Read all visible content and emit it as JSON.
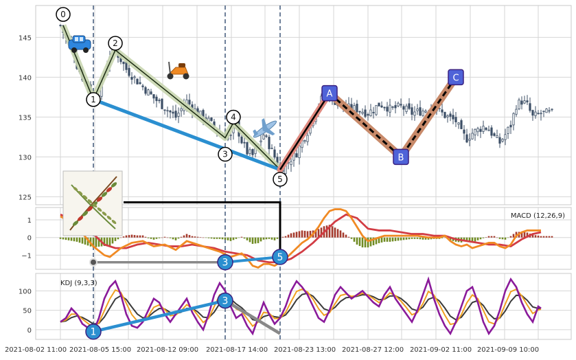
{
  "chart_data": {
    "type": "candlestick_with_indicators",
    "x_ticks": [
      "2021-08-02 11:00",
      "2021-08-05 15:00",
      "2021-08-12 09:00",
      "2021-08-17 14:00",
      "2021-08-23 13:00",
      "2021-08-27 12:00",
      "2021-09-02 11:00",
      "2021-09-09 10:00"
    ],
    "n_bars": 180,
    "price_panel": {
      "y_ticks": [
        125,
        130,
        135,
        140,
        145
      ],
      "ylim": [
        124,
        149
      ],
      "close_path": [
        [
          0,
          146.5
        ],
        [
          2,
          144.8
        ],
        [
          4,
          144.5
        ],
        [
          6,
          141.5
        ],
        [
          8,
          140.0
        ],
        [
          10,
          139.0
        ],
        [
          12,
          137.2
        ],
        [
          14,
          138.2
        ],
        [
          16,
          140.5
        ],
        [
          18,
          142.8
        ],
        [
          20,
          143.4
        ],
        [
          24,
          141.0
        ],
        [
          28,
          139.5
        ],
        [
          34,
          137.4
        ],
        [
          38,
          136.2
        ],
        [
          42,
          135.0
        ],
        [
          46,
          137.0
        ],
        [
          50,
          135.5
        ],
        [
          54,
          134.5
        ],
        [
          58,
          133.0
        ],
        [
          62,
          132.5
        ],
        [
          64,
          134.0
        ],
        [
          66,
          132.0
        ],
        [
          68,
          130.6
        ],
        [
          70,
          130.2
        ],
        [
          72,
          131.5
        ],
        [
          74,
          132.8
        ],
        [
          76,
          131.5
        ],
        [
          78,
          130.0
        ],
        [
          80,
          128.4
        ],
        [
          82,
          129.0
        ],
        [
          84,
          129.8
        ],
        [
          86,
          130.5
        ],
        [
          88,
          132.0
        ],
        [
          90,
          133.2
        ],
        [
          92,
          135.0
        ],
        [
          94,
          136.5
        ],
        [
          96,
          137.9
        ],
        [
          98,
          137.5
        ],
        [
          100,
          137.0
        ],
        [
          104,
          136.2
        ],
        [
          108,
          136.0
        ],
        [
          112,
          135.5
        ],
        [
          114,
          136.0
        ],
        [
          116,
          136.6
        ],
        [
          118,
          136.5
        ],
        [
          120,
          136.0
        ],
        [
          124,
          136.3
        ],
        [
          128,
          135.5
        ],
        [
          132,
          135.8
        ],
        [
          136,
          136.3
        ],
        [
          140,
          135.2
        ],
        [
          144,
          134.5
        ],
        [
          146,
          133.0
        ],
        [
          148,
          132.3
        ],
        [
          150,
          133.0
        ],
        [
          154,
          133.8
        ],
        [
          156,
          133.5
        ],
        [
          158,
          132.5
        ],
        [
          160,
          131.8
        ],
        [
          162,
          132.8
        ],
        [
          164,
          134.0
        ],
        [
          166,
          136.5
        ],
        [
          168,
          137.0
        ],
        [
          170,
          136.5
        ],
        [
          172,
          135.0
        ],
        [
          175,
          135.5
        ]
      ]
    },
    "zigzag_waves": [
      {
        "label": "0",
        "x": 1,
        "y": 146.5
      },
      {
        "label": "1",
        "x": 12,
        "y": 137.2
      },
      {
        "label": "2",
        "x": 20,
        "y": 143.4
      },
      {
        "label": "3",
        "x": 60,
        "y": 132.4
      },
      {
        "label": "4",
        "x": 63,
        "y": 134.3
      },
      {
        "label": "5",
        "x": 80,
        "y": 128.4
      }
    ],
    "abc_pattern": [
      {
        "label": "A",
        "x": 98,
        "y": 138.0
      },
      {
        "label": "B",
        "x": 124,
        "y": 130.0
      },
      {
        "label": "C",
        "x": 144,
        "y": 140.0
      }
    ],
    "price_trendline": {
      "from": {
        "x": 12,
        "y": 137.2
      },
      "to": {
        "x": 80,
        "y": 128.4
      }
    },
    "vertical_markers_x": [
      12,
      60,
      80
    ],
    "macd_panel": {
      "label": "MACD (12,26,9)",
      "y_ticks": [
        -1,
        0,
        1
      ],
      "ylim": [
        -1.8,
        1.7
      ],
      "macd": [
        [
          0,
          1.2
        ],
        [
          6,
          0.6
        ],
        [
          12,
          -0.5
        ],
        [
          16,
          -1.0
        ],
        [
          18,
          -1.1
        ],
        [
          22,
          -0.6
        ],
        [
          26,
          -0.3
        ],
        [
          30,
          -0.2
        ],
        [
          34,
          -0.5
        ],
        [
          38,
          -0.4
        ],
        [
          42,
          -0.7
        ],
        [
          46,
          -0.2
        ],
        [
          50,
          -0.4
        ],
        [
          54,
          -0.6
        ],
        [
          58,
          -0.8
        ],
        [
          62,
          -1.1
        ],
        [
          64,
          -1.0
        ],
        [
          66,
          -0.9
        ],
        [
          68,
          -1.2
        ],
        [
          70,
          -1.6
        ],
        [
          72,
          -1.7
        ],
        [
          74,
          -1.5
        ],
        [
          76,
          -1.5
        ],
        [
          78,
          -1.6
        ],
        [
          80,
          -1.4
        ],
        [
          82,
          -1.2
        ],
        [
          84,
          -0.9
        ],
        [
          86,
          -0.6
        ],
        [
          88,
          -0.3
        ],
        [
          90,
          -0.1
        ],
        [
          92,
          0.2
        ],
        [
          94,
          0.6
        ],
        [
          96,
          1.1
        ],
        [
          98,
          1.5
        ],
        [
          100,
          1.6
        ],
        [
          102,
          1.6
        ],
        [
          104,
          1.5
        ],
        [
          106,
          1.1
        ],
        [
          108,
          0.6
        ],
        [
          110,
          0.1
        ],
        [
          112,
          -0.2
        ],
        [
          114,
          -0.1
        ],
        [
          116,
          0.0
        ],
        [
          118,
          0.1
        ],
        [
          122,
          0.1
        ],
        [
          126,
          0.1
        ],
        [
          130,
          0.1
        ],
        [
          134,
          0.0
        ],
        [
          138,
          0.0
        ],
        [
          140,
          0.1
        ],
        [
          142,
          -0.2
        ],
        [
          144,
          -0.4
        ],
        [
          146,
          -0.5
        ],
        [
          148,
          -0.4
        ],
        [
          150,
          -0.6
        ],
        [
          152,
          -0.5
        ],
        [
          154,
          -0.4
        ],
        [
          156,
          -0.3
        ],
        [
          158,
          -0.3
        ],
        [
          160,
          -0.5
        ],
        [
          162,
          -0.6
        ],
        [
          164,
          -0.4
        ],
        [
          166,
          0.1
        ],
        [
          168,
          0.3
        ],
        [
          170,
          0.4
        ],
        [
          172,
          0.4
        ],
        [
          175,
          0.4
        ]
      ],
      "signal": [
        [
          0,
          1.3
        ],
        [
          6,
          0.9
        ],
        [
          12,
          0.2
        ],
        [
          16,
          -0.4
        ],
        [
          20,
          -0.6
        ],
        [
          24,
          -0.6
        ],
        [
          28,
          -0.4
        ],
        [
          32,
          -0.3
        ],
        [
          36,
          -0.4
        ],
        [
          40,
          -0.5
        ],
        [
          44,
          -0.5
        ],
        [
          48,
          -0.4
        ],
        [
          52,
          -0.5
        ],
        [
          56,
          -0.6
        ],
        [
          60,
          -0.8
        ],
        [
          64,
          -0.9
        ],
        [
          68,
          -1.0
        ],
        [
          72,
          -1.3
        ],
        [
          76,
          -1.4
        ],
        [
          80,
          -1.4
        ],
        [
          84,
          -1.2
        ],
        [
          88,
          -0.8
        ],
        [
          92,
          -0.3
        ],
        [
          96,
          0.3
        ],
        [
          100,
          0.9
        ],
        [
          104,
          1.3
        ],
        [
          108,
          1.1
        ],
        [
          112,
          0.5
        ],
        [
          116,
          0.4
        ],
        [
          120,
          0.4
        ],
        [
          124,
          0.3
        ],
        [
          128,
          0.2
        ],
        [
          132,
          0.2
        ],
        [
          136,
          0.1
        ],
        [
          140,
          0.1
        ],
        [
          144,
          -0.1
        ],
        [
          148,
          -0.2
        ],
        [
          152,
          -0.3
        ],
        [
          156,
          -0.4
        ],
        [
          160,
          -0.4
        ],
        [
          164,
          -0.5
        ],
        [
          168,
          -0.1
        ],
        [
          172,
          0.2
        ],
        [
          175,
          0.3
        ]
      ]
    },
    "kdj_panel": {
      "label": "KDJ (9,3,3)",
      "y_ticks": [
        0,
        50,
        100
      ],
      "ylim": [
        -25,
        145
      ],
      "j_series": [
        [
          0,
          20
        ],
        [
          2,
          30
        ],
        [
          4,
          55
        ],
        [
          6,
          40
        ],
        [
          8,
          15
        ],
        [
          10,
          5
        ],
        [
          12,
          -5
        ],
        [
          14,
          30
        ],
        [
          16,
          80
        ],
        [
          18,
          110
        ],
        [
          20,
          125
        ],
        [
          22,
          90
        ],
        [
          24,
          40
        ],
        [
          26,
          10
        ],
        [
          28,
          5
        ],
        [
          30,
          20
        ],
        [
          32,
          50
        ],
        [
          34,
          80
        ],
        [
          36,
          70
        ],
        [
          38,
          40
        ],
        [
          40,
          20
        ],
        [
          42,
          40
        ],
        [
          44,
          60
        ],
        [
          46,
          80
        ],
        [
          48,
          45
        ],
        [
          50,
          20
        ],
        [
          52,
          0
        ],
        [
          54,
          40
        ],
        [
          56,
          90
        ],
        [
          58,
          120
        ],
        [
          60,
          100
        ],
        [
          62,
          60
        ],
        [
          64,
          30
        ],
        [
          66,
          40
        ],
        [
          68,
          10
        ],
        [
          70,
          -10
        ],
        [
          72,
          30
        ],
        [
          74,
          70
        ],
        [
          76,
          40
        ],
        [
          78,
          15
        ],
        [
          80,
          30
        ],
        [
          82,
          60
        ],
        [
          84,
          100
        ],
        [
          86,
          125
        ],
        [
          88,
          110
        ],
        [
          90,
          90
        ],
        [
          92,
          60
        ],
        [
          94,
          30
        ],
        [
          96,
          20
        ],
        [
          98,
          50
        ],
        [
          100,
          90
        ],
        [
          102,
          110
        ],
        [
          104,
          95
        ],
        [
          106,
          80
        ],
        [
          108,
          90
        ],
        [
          110,
          100
        ],
        [
          112,
          85
        ],
        [
          114,
          70
        ],
        [
          116,
          60
        ],
        [
          118,
          90
        ],
        [
          120,
          110
        ],
        [
          122,
          80
        ],
        [
          124,
          60
        ],
        [
          126,
          40
        ],
        [
          128,
          20
        ],
        [
          130,
          50
        ],
        [
          132,
          90
        ],
        [
          134,
          130
        ],
        [
          136,
          80
        ],
        [
          138,
          40
        ],
        [
          140,
          10
        ],
        [
          142,
          -10
        ],
        [
          144,
          20
        ],
        [
          146,
          60
        ],
        [
          148,
          100
        ],
        [
          150,
          110
        ],
        [
          152,
          70
        ],
        [
          154,
          20
        ],
        [
          156,
          -10
        ],
        [
          158,
          10
        ],
        [
          160,
          50
        ],
        [
          162,
          100
        ],
        [
          164,
          130
        ],
        [
          166,
          110
        ],
        [
          168,
          70
        ],
        [
          170,
          40
        ],
        [
          172,
          20
        ],
        [
          174,
          60
        ],
        [
          175,
          55
        ]
      ]
    },
    "overlay_markers": [
      {
        "label": "3",
        "panel": "macd",
        "x": 60,
        "y": -1.4
      },
      {
        "label": "5",
        "panel": "macd",
        "x": 80,
        "y": -1.1
      },
      {
        "label": "1",
        "panel": "kdj",
        "x": 12,
        "y": -5
      },
      {
        "label": "3",
        "panel": "kdj",
        "x": 60,
        "y": 75
      }
    ],
    "annotation_icons": [
      "car-icon",
      "scooter-icon",
      "airplane-icon",
      "plant-sketch-icon"
    ],
    "colors": {
      "candle": "#3d4f66",
      "zigzag_fill": "#c9d6b0",
      "trend_blue": "#2b8fd0",
      "abc_fill_1": "#e08a80",
      "abc_fill_2": "#c88a6a",
      "abc_box": "#4f63d8",
      "macd_line": "#f08a24",
      "signal_line": "#d23c44",
      "hist_pos": "#a53a2d",
      "hist_neg": "#6f8b22",
      "kdj_k": "#3a3a3a",
      "kdj_d": "#f0a020",
      "kdj_j": "#8a1a9a",
      "grid": "#d6d6d6",
      "vline": "#4a6080"
    }
  }
}
